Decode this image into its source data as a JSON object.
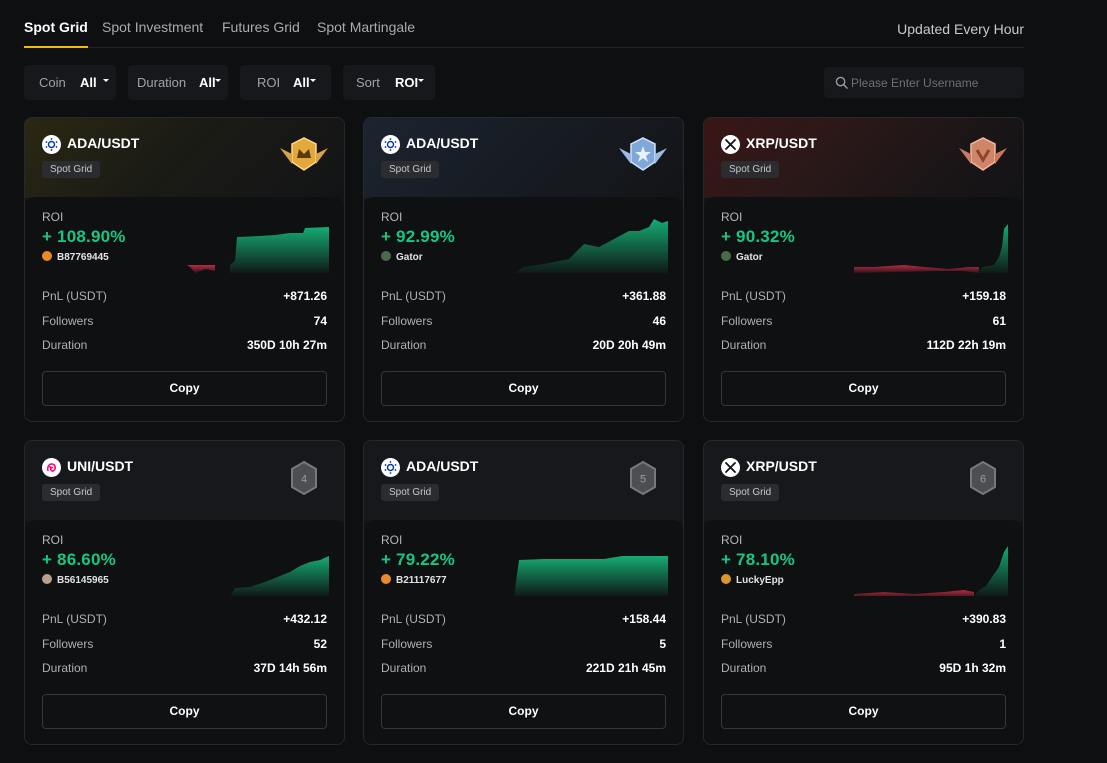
{
  "tabs": [
    "Spot Grid",
    "Spot Investment",
    "Futures Grid",
    "Spot Martingale"
  ],
  "updated": "Updated Every Hour",
  "filters": [
    {
      "label": "Coin",
      "value": "All"
    },
    {
      "label": "Duration",
      "value": "All"
    },
    {
      "label": "ROI",
      "value": "All"
    },
    {
      "label": "Sort",
      "value": "ROI"
    }
  ],
  "search": {
    "placeholder": "Please Enter Username"
  },
  "labels": {
    "roi": "ROI",
    "pnl": "PnL (USDT)",
    "followers": "Followers",
    "duration": "Duration",
    "copy": "Copy"
  },
  "colors": {
    "accent": "#f0b90b",
    "positive": "#16c784",
    "negative": "#e0314b"
  },
  "cards": [
    {
      "pair": "ADA/USDT",
      "tag": "Spot Grid",
      "coin_icon": "ada-icon",
      "rank_badge": "gold-crown-badge",
      "rank_number": "",
      "roi": "+ 108.90%",
      "user": "B87769445",
      "pnl": "+871.26",
      "followers": "74",
      "duration": "350D 10h 27m"
    },
    {
      "pair": "ADA/USDT",
      "tag": "Spot Grid",
      "coin_icon": "ada-icon",
      "rank_badge": "silver-star-badge",
      "rank_number": "",
      "roi": "+ 92.99%",
      "user": "Gator",
      "pnl": "+361.88",
      "followers": "46",
      "duration": "20D 20h 49m"
    },
    {
      "pair": "XRP/USDT",
      "tag": "Spot Grid",
      "coin_icon": "xrp-icon",
      "rank_badge": "bronze-badge",
      "rank_number": "",
      "roi": "+ 90.32%",
      "user": "Gator",
      "pnl": "+159.18",
      "followers": "61",
      "duration": "112D 22h 19m"
    },
    {
      "pair": "UNI/USDT",
      "tag": "Spot Grid",
      "coin_icon": "uni-icon",
      "rank_badge": "hexagon-rank-badge",
      "rank_number": "4",
      "roi": "+ 86.60%",
      "user": "B56145965",
      "pnl": "+432.12",
      "followers": "52",
      "duration": "37D 14h 56m"
    },
    {
      "pair": "ADA/USDT",
      "tag": "Spot Grid",
      "coin_icon": "ada-icon",
      "rank_badge": "hexagon-rank-badge",
      "rank_number": "5",
      "roi": "+ 79.22%",
      "user": "B21117677",
      "pnl": "+158.44",
      "followers": "5",
      "duration": "221D 21h 45m"
    },
    {
      "pair": "XRP/USDT",
      "tag": "Spot Grid",
      "coin_icon": "xrp-icon",
      "rank_badge": "hexagon-rank-badge",
      "rank_number": "6",
      "roi": "+ 78.10%",
      "user": "LuckyEpp",
      "pnl": "+390.83",
      "followers": "1",
      "duration": "95D 1h 32m"
    }
  ]
}
